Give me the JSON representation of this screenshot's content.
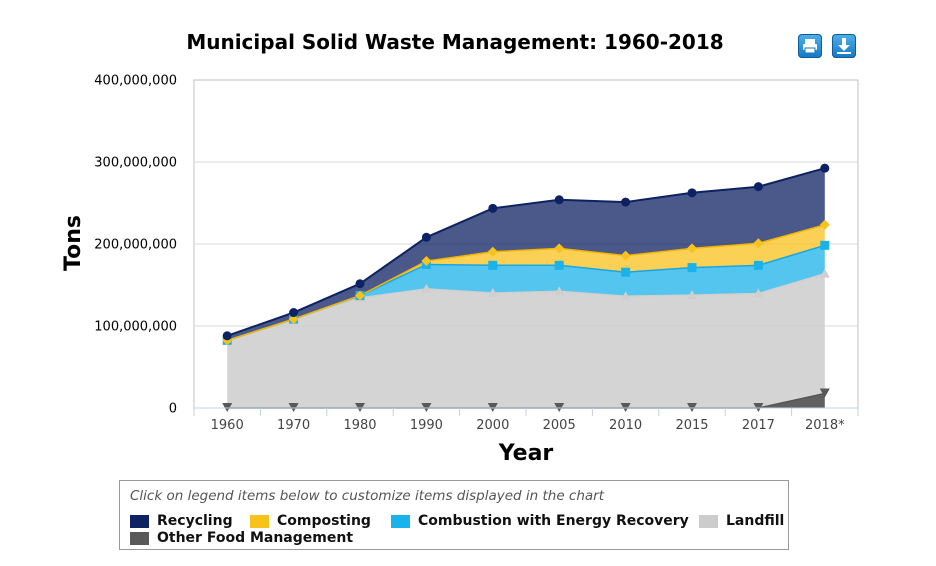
{
  "title": "Municipal Solid Waste Management: 1960-2018",
  "toolbar": {
    "print_icon": "print-icon",
    "download_icon": "download-icon"
  },
  "legend": {
    "note": "Click on legend items below to customize items displayed in the chart"
  },
  "chart_data": {
    "type": "area",
    "stacked": true,
    "title": "Municipal Solid Waste Management: 1960-2018",
    "xlabel": "Year",
    "ylabel": "Tons",
    "categories": [
      "1960",
      "1970",
      "1980",
      "1990",
      "2000",
      "2005",
      "2010",
      "2015",
      "2017",
      "2018*"
    ],
    "ylim": [
      0,
      400000000
    ],
    "yticks": [
      "0",
      "100,000,000",
      "200,000,000",
      "300,000,000",
      "400,000,000"
    ],
    "grid": true,
    "legend_position": "bottom",
    "series": [
      {
        "name": "Other Food Management",
        "color": "#595959",
        "marker": "triangle-down",
        "values": [
          0,
          0,
          0,
          0,
          0,
          0,
          0,
          0,
          0,
          17700000
        ]
      },
      {
        "name": "Landfill",
        "color": "#cccccc",
        "marker": "triangle",
        "values": [
          82500000,
          108000000,
          134400000,
          145300000,
          140300000,
          142300000,
          136300000,
          137700000,
          139600000,
          146100000
        ]
      },
      {
        "name": "Combustion with Energy Recovery",
        "color": "#1ab2ea",
        "marker": "square",
        "values": [
          0,
          400000,
          2700000,
          29700000,
          33700000,
          31700000,
          29300000,
          33500000,
          34300000,
          34600000
        ]
      },
      {
        "name": "Composting",
        "color": "#f8c21c",
        "marker": "diamond",
        "values": [
          0,
          0,
          0,
          4200000,
          16500000,
          20600000,
          20200000,
          23400000,
          27000000,
          25000000
        ]
      },
      {
        "name": "Recycling",
        "color": "#0d2262",
        "marker": "circle",
        "values": [
          5600000,
          8000000,
          14500000,
          29000000,
          53000000,
          59300000,
          65300000,
          67800000,
          69000000,
          69100000
        ]
      }
    ]
  }
}
